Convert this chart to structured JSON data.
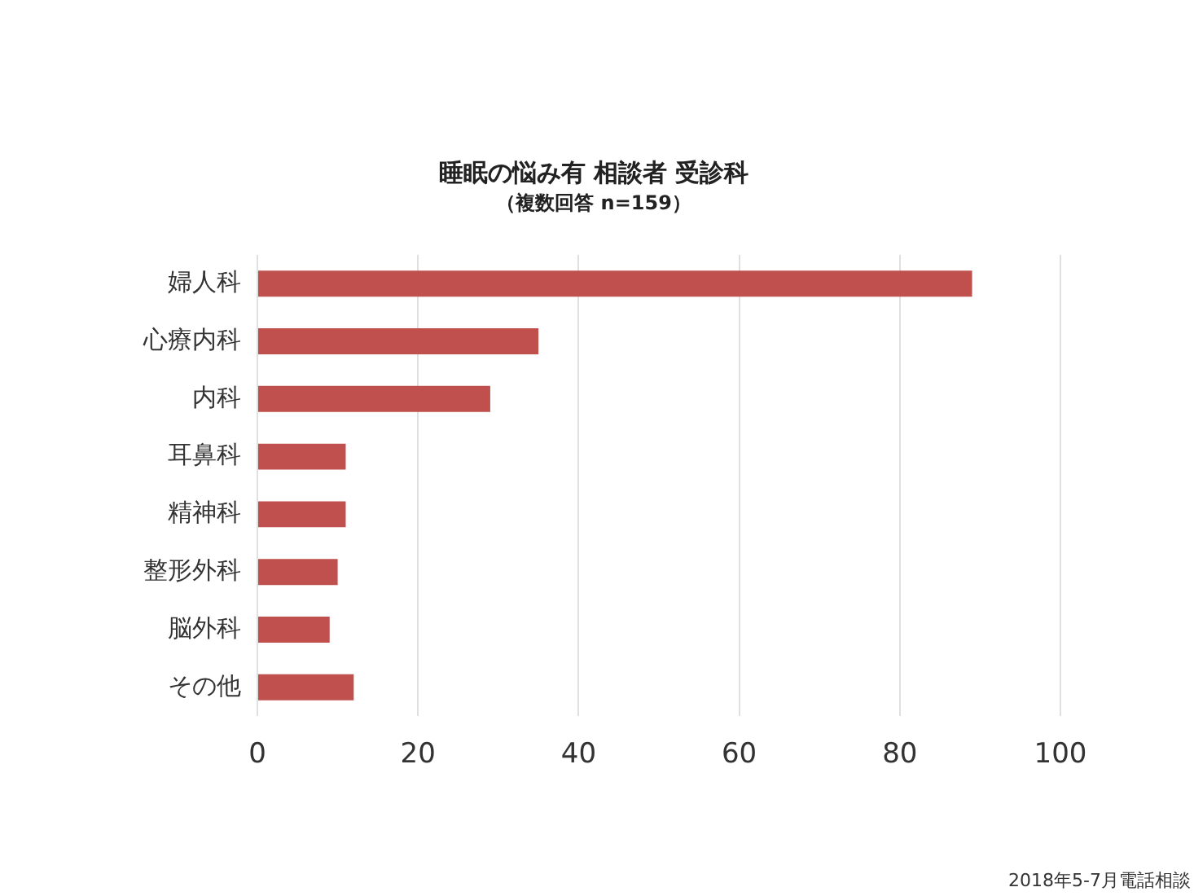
{
  "chart_data": {
    "type": "bar",
    "orientation": "horizontal",
    "title": "睡眠の悩み有 相談者 受診科",
    "subtitle": "（複数回答 n=159）",
    "categories": [
      "婦人科",
      "心療内科",
      "内科",
      "耳鼻科",
      "精神科",
      "整形外科",
      "脳外科",
      "その他"
    ],
    "values": [
      89,
      35,
      29,
      11,
      11,
      10,
      9,
      12
    ],
    "color": "#c0504d",
    "xlim": [
      0,
      100
    ],
    "xticks": [
      0,
      20,
      40,
      60,
      80,
      100
    ],
    "grid": "x",
    "legend": false,
    "annotations": [
      "2018年5-7月電話相談"
    ]
  }
}
